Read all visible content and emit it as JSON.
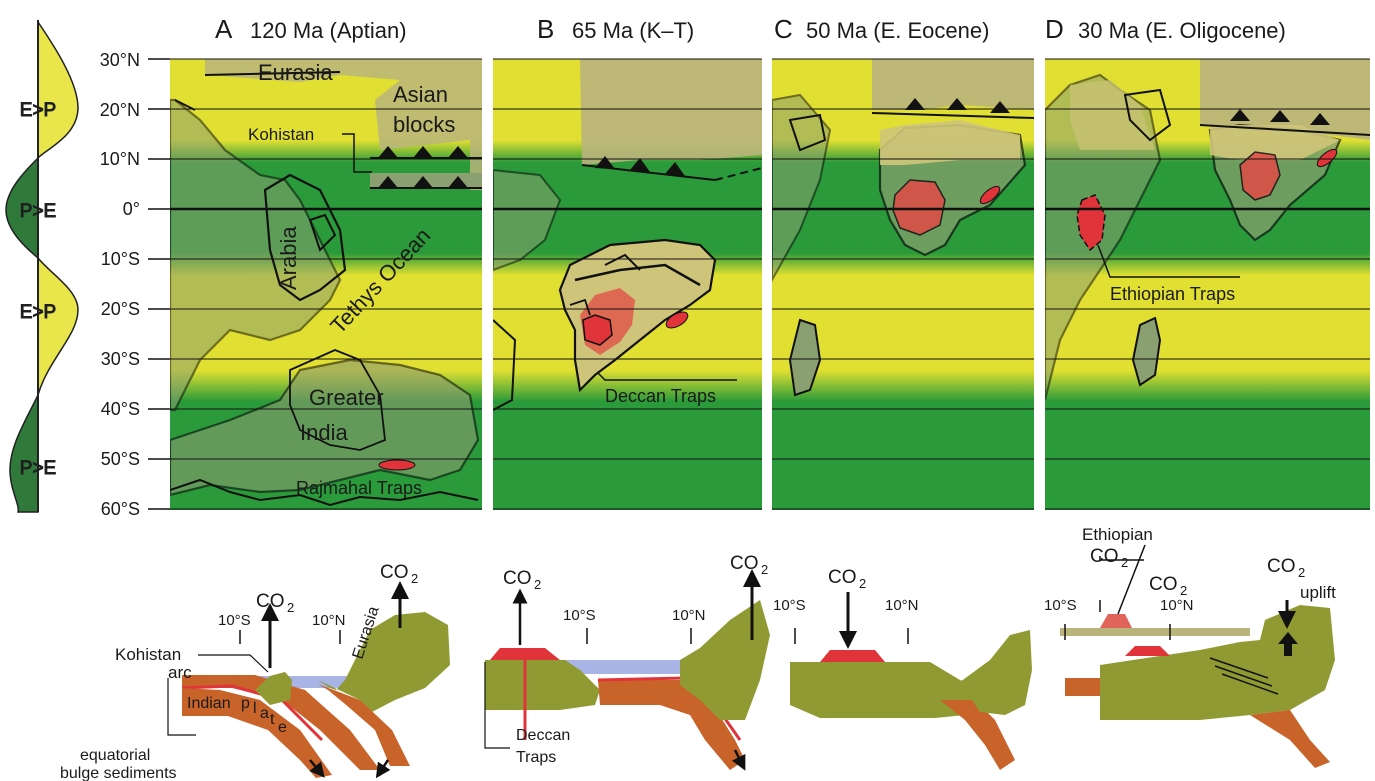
{
  "panels": [
    {
      "letter": "A",
      "label": "120 Ma (Aptian)"
    },
    {
      "letter": "B",
      "label": "65 Ma (K–T)"
    },
    {
      "letter": "C",
      "label": "50 Ma (E. Eocene)"
    },
    {
      "letter": "D",
      "label": "30 Ma (E. Oligocene)"
    }
  ],
  "latitudes": [
    "30°N",
    "20°N",
    "10°N",
    "0°",
    "10°S",
    "20°S",
    "30°S",
    "40°S",
    "50°S",
    "60°S"
  ],
  "climate_bands": [
    "E>P",
    "P>E",
    "E>P",
    "P>E"
  ],
  "map_labels": {
    "eurasia": "Eurasia",
    "asian": "Asian",
    "blocks": "blocks",
    "kohistan": "Kohistan",
    "arabia": "Arabia",
    "tethys": "Tethys Ocean",
    "greater": "Greater",
    "india": "India",
    "rajmahal": "Rajmahal Traps",
    "deccan": "Deccan Traps",
    "ethiopian": "Ethiopian Traps"
  },
  "sections": {
    "co2": "CO",
    "co2_sub": "2",
    "lat_10s": "10°S",
    "lat_10n": "10°N",
    "kohistan": "Kohistan",
    "arc": "arc",
    "eurasia": "Eurasia",
    "indian_plate": "Indian",
    "plate_letters": [
      "p",
      "l",
      "a",
      "t",
      "e"
    ],
    "equatorial": "equatorial",
    "bulge": "bulge sediments",
    "deccan": "Deccan",
    "traps": "Traps",
    "ethiopian": "Ethiopian",
    "uplift": "uplift"
  },
  "colors": {
    "dry_yellow": "#e1e032",
    "wet_green": "#2a9a3a",
    "land_olive": "#b9b47c",
    "land_on_green": "#5f9e6a",
    "land_on_yellow": "#c8c274",
    "trap_red": "#e0343a",
    "plate_brown": "#c8642a",
    "crust_olive": "#909a32",
    "sea_blue": "#a8b4e6"
  }
}
